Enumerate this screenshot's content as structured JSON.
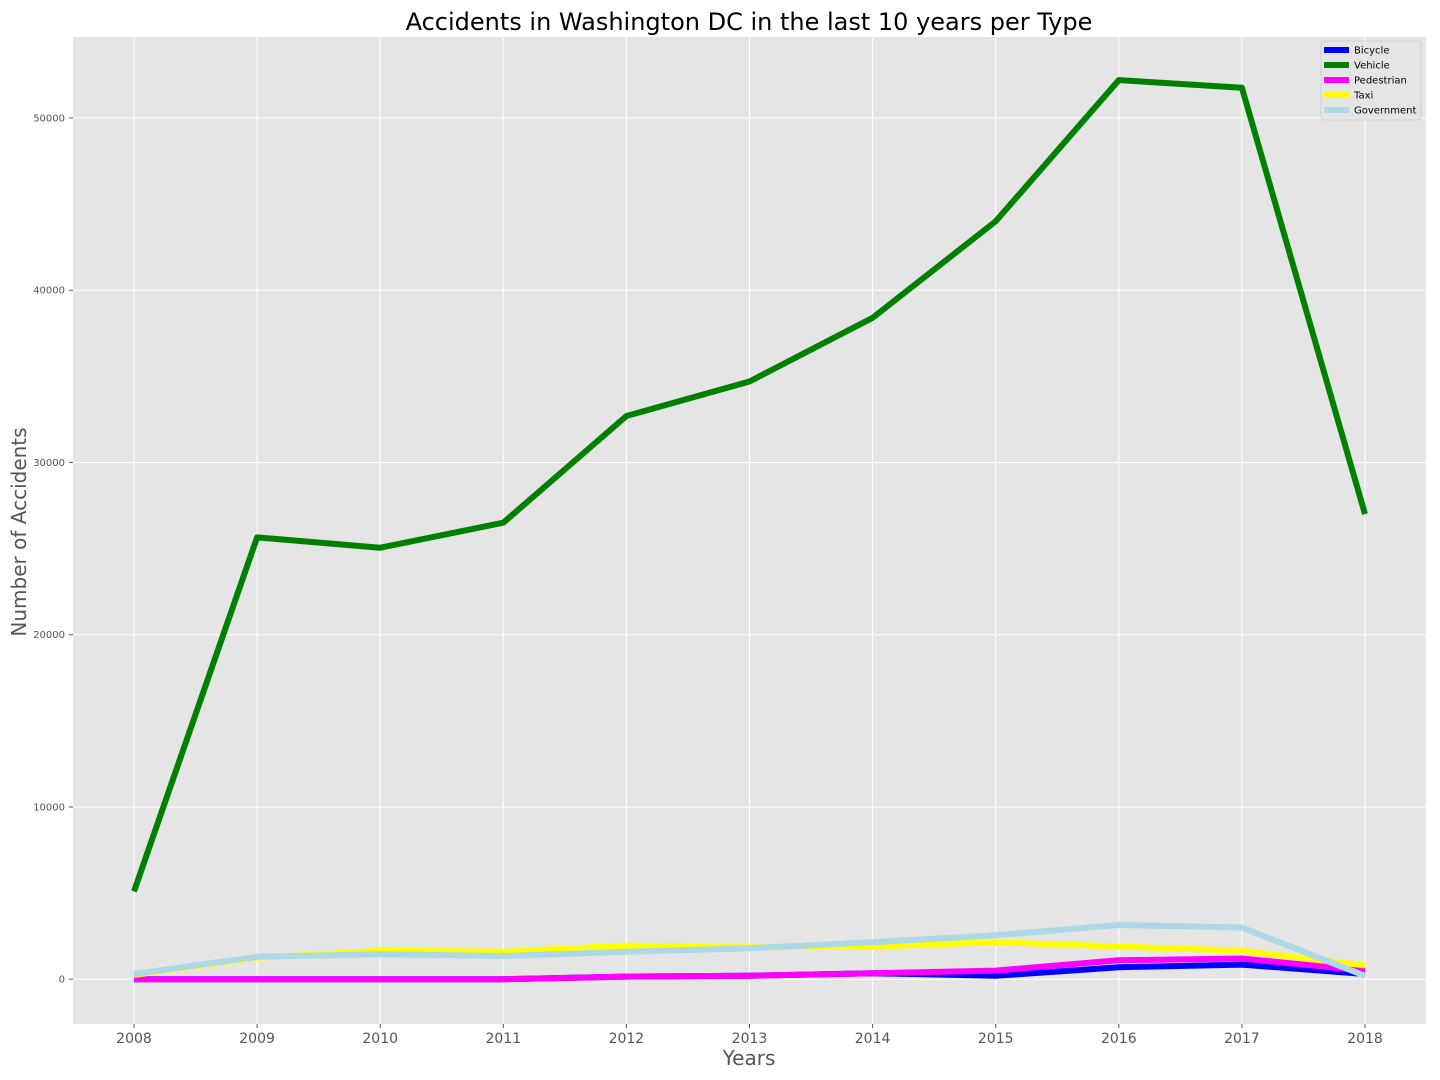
{
  "chart_data": {
    "type": "line",
    "title": "Accidents in Washington DC in the last 10 years per Type",
    "xlabel": "Years",
    "ylabel": "Number of Accidents",
    "x": [
      "2008",
      "2009",
      "2010",
      "2011",
      "2012",
      "2013",
      "2014",
      "2015",
      "2016",
      "2017",
      "2018"
    ],
    "ylim": [
      -2600,
      54700
    ],
    "yticks": [
      0,
      10000,
      20000,
      30000,
      40000,
      50000
    ],
    "grid": true,
    "legend_position": "top-right",
    "background_color": "#e5e5e5",
    "series": [
      {
        "name": "Bicycle",
        "color": "#0000ff",
        "values": [
          0,
          0,
          0,
          0,
          150,
          200,
          350,
          200,
          700,
          850,
          300
        ]
      },
      {
        "name": "Vehicle",
        "color": "#008000",
        "values": [
          5100,
          25650,
          25050,
          26500,
          32700,
          34700,
          38400,
          44000,
          52200,
          51750,
          27000
        ]
      },
      {
        "name": "Pedestrian",
        "color": "#ff00ff",
        "values": [
          0,
          0,
          0,
          0,
          150,
          200,
          350,
          500,
          1100,
          1200,
          500
        ]
      },
      {
        "name": "Taxi",
        "color": "#ffff00",
        "values": [
          250,
          1250,
          1650,
          1600,
          1950,
          1850,
          1900,
          2150,
          1900,
          1650,
          800
        ]
      },
      {
        "name": "Government",
        "color": "#add8e6",
        "values": [
          300,
          1300,
          1450,
          1350,
          1600,
          1800,
          2150,
          2550,
          3150,
          3000,
          200
        ]
      }
    ]
  }
}
